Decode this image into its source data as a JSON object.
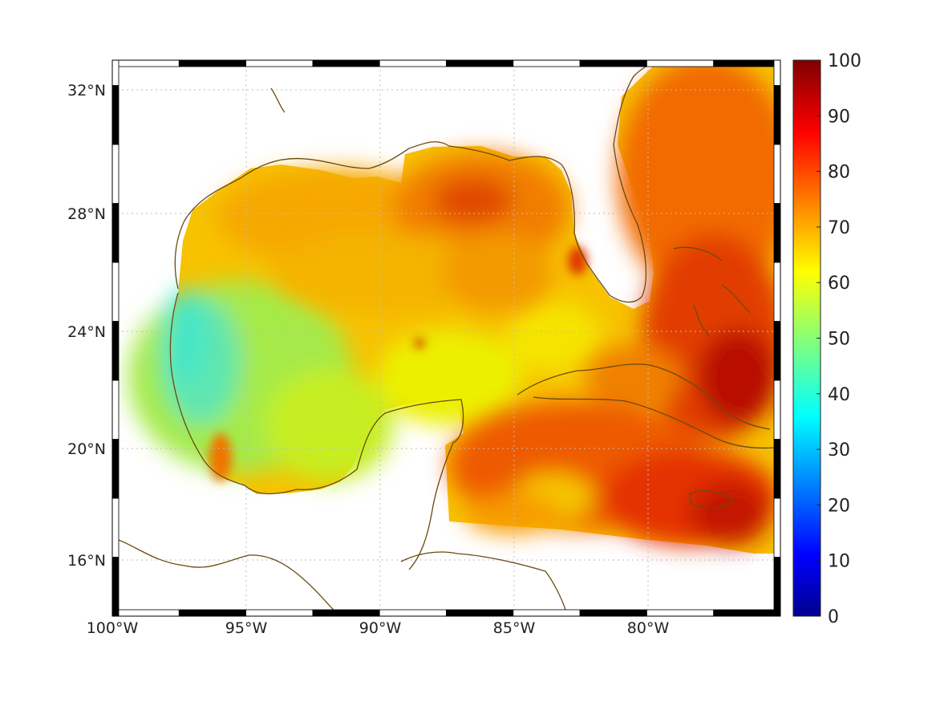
{
  "map": {
    "x_ticks": [
      "100°W",
      "95°W",
      "90°W",
      "85°W",
      "80°W"
    ],
    "y_ticks": [
      "32°N",
      "28°N",
      "24°N",
      "20°N",
      "16°N"
    ],
    "coast_color": "#6b4a12",
    "grid": "dotted"
  },
  "colorbar": {
    "colormap": "jet",
    "min": 0,
    "max": 100,
    "ticks": [
      "100",
      "90",
      "80",
      "70",
      "60",
      "50",
      "40",
      "30",
      "20",
      "10",
      "0"
    ]
  },
  "colors": {
    "low_field": "#7fe9a8",
    "mid_field": "#f5e800",
    "high_field": "#f58a00",
    "peak_field": "#c81400"
  }
}
